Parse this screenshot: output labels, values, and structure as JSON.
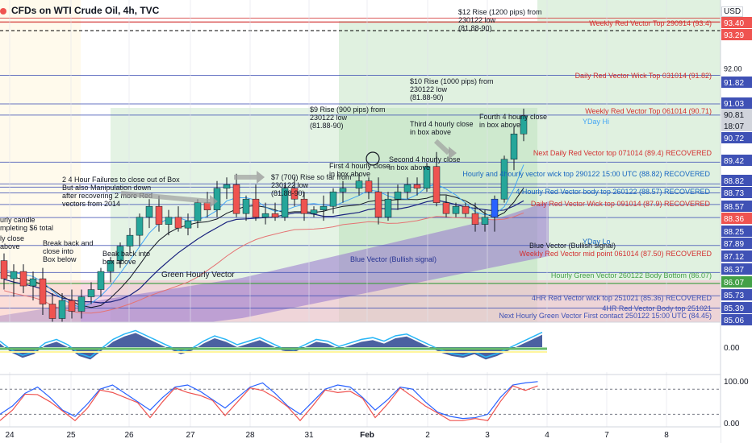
{
  "title": "CFDs on WTI Crude Oil, 4h, TVC",
  "currency": "USD",
  "colors": {
    "up": "#26a69a",
    "down": "#ef5350",
    "blue_candle": "#2962ff",
    "green_zone": "#a5d6a7",
    "pink_zone": "#f8bbd0",
    "purple_band": "#9575cd",
    "red_line": "#d32f2f",
    "blue_line": "#3f51b5",
    "green_line": "#43a047"
  },
  "chart_data": [
    {
      "type": "candlestick",
      "name": "price",
      "x_labels": [
        "24",
        "25",
        "26",
        "27",
        "28",
        "31",
        "Feb",
        "2",
        "3",
        "4",
        "7",
        "8"
      ],
      "ylim": [
        85.0,
        93.9
      ],
      "y_ticks": [
        93.0,
        92.0
      ],
      "candles": [
        {
          "o": 86.7,
          "h": 86.9,
          "l": 85.9,
          "c": 86.2,
          "col": "down"
        },
        {
          "o": 86.2,
          "h": 86.6,
          "l": 85.7,
          "c": 86.4,
          "col": "up"
        },
        {
          "o": 86.4,
          "h": 86.6,
          "l": 85.8,
          "c": 86.0,
          "col": "down"
        },
        {
          "o": 86.0,
          "h": 86.4,
          "l": 85.6,
          "c": 86.2,
          "col": "up"
        },
        {
          "o": 86.2,
          "h": 86.5,
          "l": 85.2,
          "c": 85.5,
          "col": "down"
        },
        {
          "o": 85.5,
          "h": 85.8,
          "l": 85.0,
          "c": 85.1,
          "col": "down"
        },
        {
          "o": 85.1,
          "h": 85.8,
          "l": 84.9,
          "c": 85.6,
          "col": "up"
        },
        {
          "o": 85.6,
          "h": 85.9,
          "l": 85.1,
          "c": 85.3,
          "col": "down"
        },
        {
          "o": 85.3,
          "h": 85.9,
          "l": 85.1,
          "c": 85.7,
          "col": "up"
        },
        {
          "o": 85.7,
          "h": 86.1,
          "l": 85.5,
          "c": 85.9,
          "col": "up"
        },
        {
          "o": 85.9,
          "h": 86.5,
          "l": 85.7,
          "c": 86.4,
          "col": "up"
        },
        {
          "o": 86.4,
          "h": 86.8,
          "l": 86.1,
          "c": 86.7,
          "col": "up"
        },
        {
          "o": 86.7,
          "h": 87.2,
          "l": 86.5,
          "c": 87.1,
          "col": "up"
        },
        {
          "o": 87.1,
          "h": 87.6,
          "l": 86.9,
          "c": 87.4,
          "col": "up"
        },
        {
          "o": 87.4,
          "h": 88.0,
          "l": 87.1,
          "c": 87.9,
          "col": "up"
        },
        {
          "o": 87.9,
          "h": 88.4,
          "l": 87.6,
          "c": 88.2,
          "col": "up"
        },
        {
          "o": 88.2,
          "h": 88.5,
          "l": 87.5,
          "c": 87.7,
          "col": "down"
        },
        {
          "o": 87.7,
          "h": 88.1,
          "l": 87.4,
          "c": 87.9,
          "col": "up"
        },
        {
          "o": 87.9,
          "h": 88.2,
          "l": 87.5,
          "c": 87.6,
          "col": "down"
        },
        {
          "o": 87.6,
          "h": 88.0,
          "l": 87.4,
          "c": 87.8,
          "col": "up"
        },
        {
          "o": 87.8,
          "h": 88.4,
          "l": 87.6,
          "c": 88.3,
          "col": "up"
        },
        {
          "o": 88.3,
          "h": 88.6,
          "l": 87.9,
          "c": 88.1,
          "col": "down"
        },
        {
          "o": 88.1,
          "h": 88.9,
          "l": 87.9,
          "c": 88.7,
          "col": "up"
        },
        {
          "o": 88.7,
          "h": 89.0,
          "l": 88.4,
          "c": 88.8,
          "col": "up"
        },
        {
          "o": 88.8,
          "h": 89.1,
          "l": 87.9,
          "c": 88.0,
          "col": "down"
        },
        {
          "o": 88.0,
          "h": 88.5,
          "l": 87.8,
          "c": 88.4,
          "col": "up"
        },
        {
          "o": 88.4,
          "h": 88.8,
          "l": 87.8,
          "c": 87.9,
          "col": "down"
        },
        {
          "o": 87.9,
          "h": 88.3,
          "l": 87.7,
          "c": 88.0,
          "col": "up"
        },
        {
          "o": 88.0,
          "h": 88.3,
          "l": 87.8,
          "c": 87.9,
          "col": "down"
        },
        {
          "o": 87.9,
          "h": 88.8,
          "l": 87.8,
          "c": 88.7,
          "col": "up"
        },
        {
          "o": 88.7,
          "h": 89.0,
          "l": 88.2,
          "c": 88.4,
          "col": "down"
        },
        {
          "o": 88.4,
          "h": 88.6,
          "l": 87.8,
          "c": 88.0,
          "col": "down"
        },
        {
          "o": 88.0,
          "h": 88.2,
          "l": 87.9,
          "c": 88.1,
          "col": "up"
        },
        {
          "o": 88.1,
          "h": 88.5,
          "l": 87.8,
          "c": 88.2,
          "col": "up"
        },
        {
          "o": 88.2,
          "h": 88.7,
          "l": 88.0,
          "c": 88.6,
          "col": "up"
        },
        {
          "o": 88.6,
          "h": 88.9,
          "l": 88.3,
          "c": 88.7,
          "col": "up"
        },
        {
          "o": 88.7,
          "h": 89.1,
          "l": 88.5,
          "c": 88.9,
          "col": "up"
        },
        {
          "o": 88.9,
          "h": 89.0,
          "l": 88.4,
          "c": 88.6,
          "col": "down"
        },
        {
          "o": 88.6,
          "h": 89.0,
          "l": 87.7,
          "c": 87.9,
          "col": "down"
        },
        {
          "o": 87.9,
          "h": 88.6,
          "l": 87.8,
          "c": 88.4,
          "col": "up"
        },
        {
          "o": 88.4,
          "h": 88.8,
          "l": 88.1,
          "c": 88.6,
          "col": "up"
        },
        {
          "o": 88.6,
          "h": 89.0,
          "l": 88.4,
          "c": 88.8,
          "col": "up"
        },
        {
          "o": 88.8,
          "h": 89.0,
          "l": 88.5,
          "c": 88.7,
          "col": "down"
        },
        {
          "o": 88.7,
          "h": 89.4,
          "l": 88.6,
          "c": 89.3,
          "col": "up"
        },
        {
          "o": 89.3,
          "h": 89.7,
          "l": 88.2,
          "c": 88.3,
          "col": "down"
        },
        {
          "o": 88.3,
          "h": 88.5,
          "l": 87.9,
          "c": 88.0,
          "col": "down"
        },
        {
          "o": 88.0,
          "h": 88.3,
          "l": 87.9,
          "c": 88.2,
          "col": "up"
        },
        {
          "o": 88.2,
          "h": 88.3,
          "l": 87.9,
          "c": 88.0,
          "col": "down"
        },
        {
          "o": 88.0,
          "h": 88.3,
          "l": 87.5,
          "c": 87.7,
          "col": "down"
        },
        {
          "o": 87.7,
          "h": 88.1,
          "l": 87.5,
          "c": 87.9,
          "col": "up"
        },
        {
          "o": 87.9,
          "h": 88.5,
          "l": 87.5,
          "c": 88.4,
          "col": "blue"
        },
        {
          "o": 88.4,
          "h": 89.6,
          "l": 88.3,
          "c": 89.5,
          "col": "up"
        },
        {
          "o": 89.5,
          "h": 90.4,
          "l": 89.2,
          "c": 90.2,
          "col": "up"
        },
        {
          "o": 90.2,
          "h": 90.9,
          "l": 90.0,
          "c": 90.7,
          "col": "up"
        }
      ]
    },
    {
      "type": "line",
      "name": "oscillator",
      "y_ticks": [
        0.0
      ],
      "values": [
        0.2,
        -0.3,
        -0.6,
        -0.4,
        0.1,
        0.3,
        0.0,
        -0.5,
        -0.7,
        -0.2,
        0.3,
        0.6,
        0.8,
        0.5,
        0.2,
        -0.1,
        -0.4,
        -0.2,
        0.2,
        0.5,
        0.3,
        0.0,
        0.2,
        0.4,
        0.1,
        -0.2,
        -0.3,
        0.0,
        0.3,
        0.2,
        -0.1,
        0.1,
        0.3,
        0.4,
        0.2,
        0.5,
        0.6,
        0.3,
        0.0,
        -0.3,
        -0.5,
        -0.6,
        -0.4,
        -0.7,
        -0.5,
        -0.2,
        0.1,
        0.4,
        0.7
      ]
    },
    {
      "type": "line",
      "name": "stochastic",
      "y_ticks": [
        100.0,
        0.0
      ],
      "ylim": [
        -10,
        115
      ],
      "values": [
        20,
        40,
        70,
        85,
        60,
        30,
        15,
        45,
        80,
        90,
        70,
        50,
        30,
        60,
        85,
        90,
        75,
        55,
        35,
        60,
        85,
        95,
        70,
        40,
        20,
        50,
        80,
        90,
        85,
        60,
        30,
        55,
        85,
        80,
        50,
        25,
        15,
        10,
        12,
        20,
        60,
        90,
        95,
        98
      ]
    }
  ],
  "price_labels": [
    {
      "text": "93.40",
      "bg": "#ef5350"
    },
    {
      "text": "93.29",
      "bg": "#ef5350"
    },
    {
      "text": "91.82",
      "bg": "#3f51b5"
    },
    {
      "text": "91.03",
      "bg": "#3f51b5"
    },
    {
      "text": "90.81",
      "bg": "#d1d4dc"
    },
    {
      "text": "18:07",
      "bg": "#d1d4dc"
    },
    {
      "text": "90.72",
      "bg": "#3f51b5"
    },
    {
      "text": "89.42",
      "bg": "#3f51b5"
    },
    {
      "text": "88.82",
      "bg": "#3f51b5"
    },
    {
      "text": "88.73",
      "bg": "#3f51b5"
    },
    {
      "text": "88.57",
      "bg": "#3f51b5"
    },
    {
      "text": "88.36",
      "bg": "#ef5350"
    },
    {
      "text": "88.25",
      "bg": "#3f51b5"
    },
    {
      "text": "87.89",
      "bg": "#3f51b5"
    },
    {
      "text": "87.12",
      "bg": "#3f51b5"
    },
    {
      "text": "86.37",
      "bg": "#3f51b5"
    },
    {
      "text": "86.07",
      "bg": "#43a047"
    },
    {
      "text": "85.73",
      "bg": "#3f51b5"
    },
    {
      "text": "85.39",
      "bg": "#3f51b5"
    },
    {
      "text": "85.06",
      "bg": "#3f51b5"
    }
  ],
  "osc_label": "0.00",
  "annotations": {
    "weekly_red_top": "Weekly Red Vector Top 290914 (93.4)",
    "rise12": "$12 Rise (1200 pips) from\n230122 low\n(81.88-90)",
    "daily_red_wick": "Daily Red Vector Wick Top 031014 (91.82)",
    "rise10": "$10 Rise (1000 pips) from\n230122 low\n(81.88-90)",
    "weekly_red_061014": "Weekly Red Vector Top 061014 (90.71)",
    "rise9": "$9 Rise (900 pips) from\n230122 low\n(81.88-90)",
    "fourth_close": "Fourth 4 hourly close\nin box above",
    "third_close": "Third 4 hourly close\nin box above",
    "yday_hi": "YDay Hi",
    "next_daily_red": "Next Daily Red Vector top 071014 (89.4) RECOVERED",
    "second_close": "Second 4 hourly close\nin box above",
    "first_close": "First 4 hourly close\nin box above",
    "rise7": "$7 (700) Rise so far from\n230122 low\n(81.88-90)",
    "failures": "2 4 Hour Failures to close out of Box\nBut also Manipulation down\nafter recovering 2 more Red\nvectors from 2014",
    "hourly_vector_wick": "Hourly and 4hourly vector wick top 290122 15:00 UTC (88.82) RECOVERED",
    "four_hourly_red": "4 Hourly Red Vector body top 260122 (88.57) RECOVERED",
    "daily_red_091014": "Daily Red Vector Wick top 091014 (87.9) RECOVERED",
    "hourly_candle": "urly candle\nmpleting $6 total",
    "break_close": "Break back and\nclose into\nBox below",
    "beak_break": "Beak back into\nbox above",
    "ly_close": "ly close\nabove",
    "yday_lo": "YDay Lo",
    "blue_vector_bull1": "Blue Vector (Bullish signal)",
    "blue_vector_bull2": "Blue Vector (Bullish signal)",
    "weekly_red_mid": "Weekly Red Vector mid point 061014 (87.50) RECOVERED",
    "green_hourly": "Green Hourly Vector",
    "hourly_green_body": "Hourly Green Vector 260122 Body Bottom (86.07)",
    "4hr_red_wick": "4HR Red Vector wick top 251021 (85.36) RECOVERED",
    "4hr_red_body": "4HR Red Vector Body top 251021",
    "next_hourly_green": "Next Hourly Green Vector First contact 250122 15:00 UTC (84.45)"
  }
}
